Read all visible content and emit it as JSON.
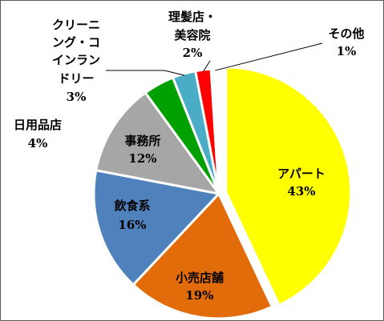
{
  "chart_data": {
    "type": "pie",
    "title": "",
    "start_angle_deg": 0,
    "direction": "clockwise",
    "slices": [
      {
        "label": "アパート",
        "value": 43,
        "pct_label": "43%",
        "color": "#FFFF00",
        "text_color": "#333333",
        "exploded": true
      },
      {
        "label": "小売店舗",
        "value": 19,
        "pct_label": "19%",
        "color": "#E36C0A",
        "text_color": "#333333",
        "exploded": false
      },
      {
        "label": "飲食系",
        "value": 16,
        "pct_label": "16%",
        "color": "#4F81BD",
        "text_color": "#333333",
        "exploded": false
      },
      {
        "label": "事務所",
        "value": 12,
        "pct_label": "12%",
        "color": "#A6A6A6",
        "text_color": "#333333",
        "exploded": false
      },
      {
        "label": "日用品店",
        "value": 4,
        "pct_label": "4%",
        "color": "#00A000",
        "text_color": "#333333",
        "exploded": false
      },
      {
        "label": "クリーニング・コインランドリー",
        "label_lines": [
          "クリーニ",
          "ング・コ",
          "インラン",
          "ドリー"
        ],
        "value": 3,
        "pct_label": "3%",
        "color": "#4BACC6",
        "text_color": "#333333",
        "exploded": false
      },
      {
        "label": "理髪店・美容院",
        "label_lines": [
          "理髪店・",
          "美容院"
        ],
        "value": 2,
        "pct_label": "2%",
        "color": "#FF0000",
        "text_color": "#333333",
        "exploded": false
      },
      {
        "label": "その他",
        "value": 1,
        "pct_label": "1%",
        "color": "#FFFFFF",
        "text_color": "#333333",
        "exploded": false
      }
    ],
    "legend": "none"
  }
}
